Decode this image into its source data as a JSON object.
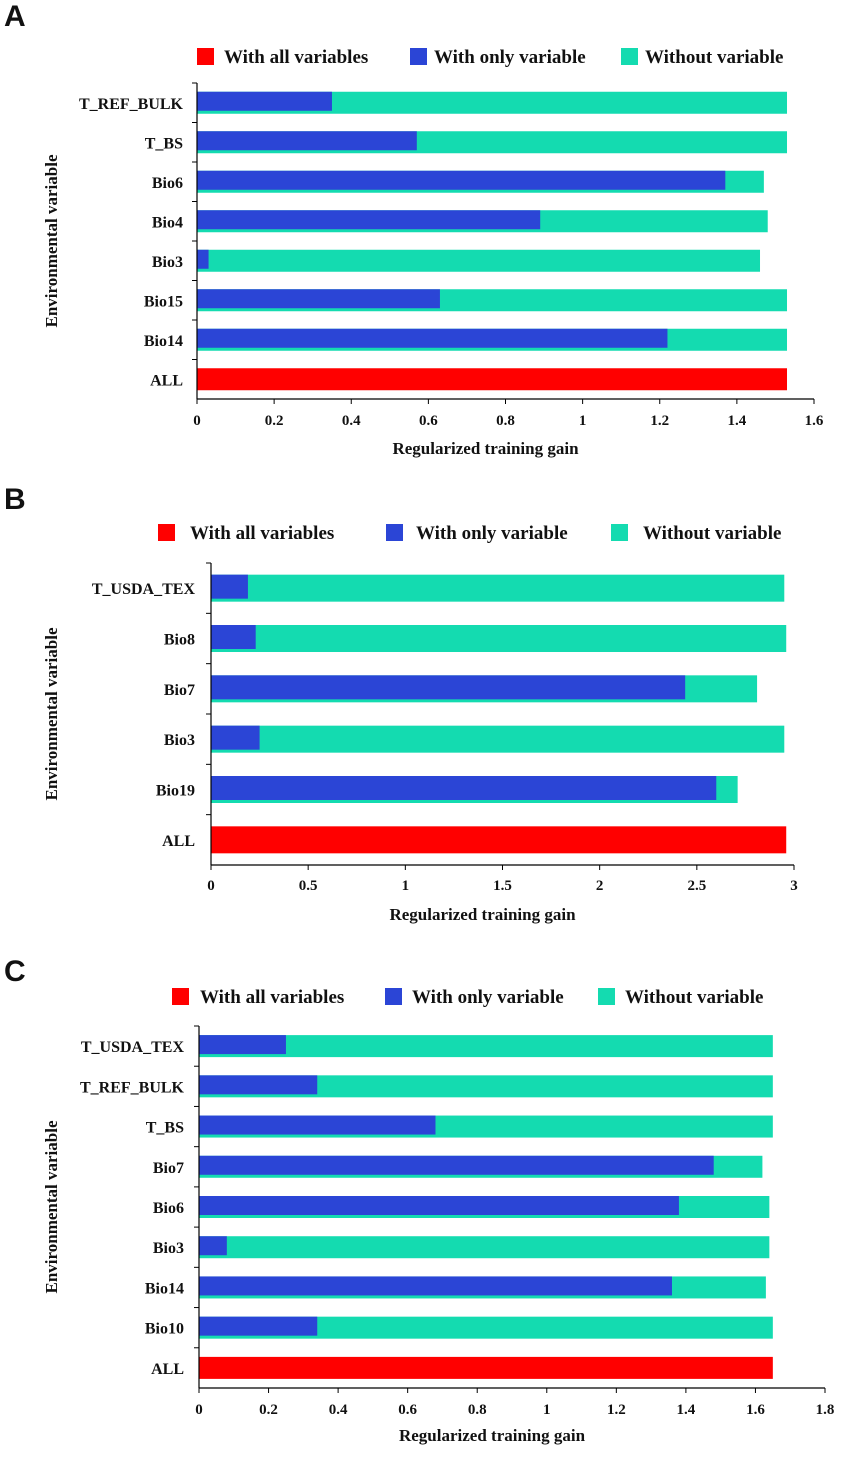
{
  "colors": {
    "all": "#ff0000",
    "only": "#2b45d6",
    "without": "#14dbb0",
    "axis": "#000000"
  },
  "chart_data": [
    {
      "panel": "A",
      "type": "bar",
      "orientation": "horizontal",
      "xlabel": "Regularized training gain",
      "ylabel": "Environmental variable",
      "xlim": [
        0,
        1.6
      ],
      "xticks": [
        0,
        0.2,
        0.4,
        0.6,
        0.8,
        1,
        1.2,
        1.4,
        1.6
      ],
      "xtick_labels": [
        "0",
        "0.2",
        "0.4",
        "0.6",
        "0.8",
        "1",
        "1.2",
        "1.4",
        "1.6"
      ],
      "legend": [
        "With all variables",
        "With only variable",
        "Without variable"
      ],
      "categories": [
        "T_REF_BULK",
        "T_BS",
        "Bio6",
        "Bio4",
        "Bio3",
        "Bio15",
        "Bio14",
        "ALL"
      ],
      "series": [
        {
          "name": "Without variable",
          "values": [
            1.53,
            1.53,
            1.47,
            1.48,
            1.46,
            1.53,
            1.53,
            null
          ]
        },
        {
          "name": "With only variable",
          "values": [
            0.35,
            0.57,
            1.37,
            0.89,
            0.03,
            0.63,
            1.22,
            null
          ]
        },
        {
          "name": "With all variables",
          "values": [
            null,
            null,
            null,
            null,
            null,
            null,
            null,
            1.53
          ]
        }
      ]
    },
    {
      "panel": "B",
      "type": "bar",
      "orientation": "horizontal",
      "xlabel": "Regularized training gain",
      "ylabel": "Environmental variable",
      "xlim": [
        0,
        3
      ],
      "xticks": [
        0,
        0.5,
        1,
        1.5,
        2,
        2.5,
        3
      ],
      "xtick_labels": [
        "0",
        "0.5",
        "1",
        "1.5",
        "2",
        "2.5",
        "3"
      ],
      "legend": [
        "With all variables",
        "With only variable",
        "Without variable"
      ],
      "categories": [
        "T_USDA_TEX",
        "Bio8",
        "Bio7",
        "Bio3",
        "Bio19",
        "ALL"
      ],
      "series": [
        {
          "name": "Without variable",
          "values": [
            2.95,
            2.96,
            2.81,
            2.95,
            2.71,
            null
          ]
        },
        {
          "name": "With only variable",
          "values": [
            0.19,
            0.23,
            2.44,
            0.25,
            2.6,
            null
          ]
        },
        {
          "name": "With all variables",
          "values": [
            null,
            null,
            null,
            null,
            null,
            2.96
          ]
        }
      ]
    },
    {
      "panel": "C",
      "type": "bar",
      "orientation": "horizontal",
      "xlabel": "Regularized training gain",
      "ylabel": "Environmental variable",
      "xlim": [
        0,
        1.8
      ],
      "xticks": [
        0,
        0.2,
        0.4,
        0.6,
        0.8,
        1,
        1.2,
        1.4,
        1.6,
        1.8
      ],
      "xtick_labels": [
        "0",
        "0.2",
        "0.4",
        "0.6",
        "0.8",
        "1",
        "1.2",
        "1.4",
        "1.6",
        "1.8"
      ],
      "legend": [
        "With all variables",
        "With only variable",
        "Without variable"
      ],
      "categories": [
        "T_USDA_TEX",
        "T_REF_BULK",
        "T_BS",
        "Bio7",
        "Bio6",
        "Bio3",
        "Bio14",
        "Bio10",
        "ALL"
      ],
      "series": [
        {
          "name": "Without variable",
          "values": [
            1.65,
            1.65,
            1.65,
            1.62,
            1.64,
            1.64,
            1.63,
            1.65,
            null
          ]
        },
        {
          "name": "With only variable",
          "values": [
            0.25,
            0.34,
            0.68,
            1.48,
            1.38,
            0.08,
            1.36,
            0.34,
            null
          ]
        },
        {
          "name": "With all variables",
          "values": [
            null,
            null,
            null,
            null,
            null,
            null,
            null,
            null,
            1.65
          ]
        }
      ]
    }
  ]
}
